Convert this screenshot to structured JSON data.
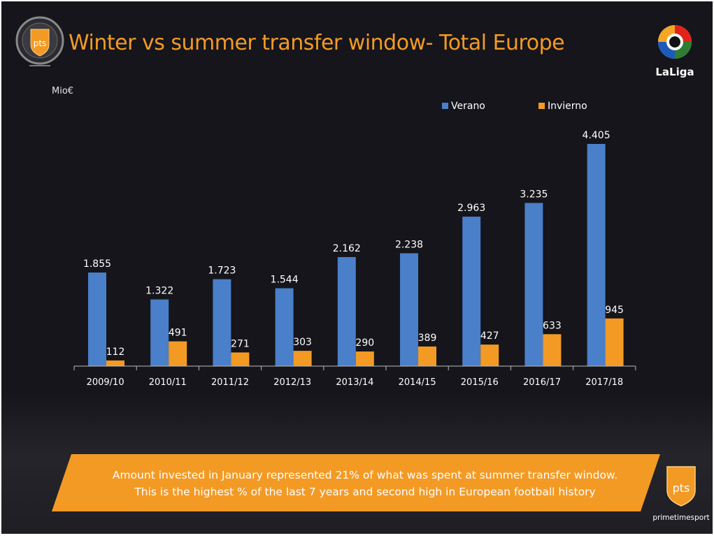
{
  "slide": {
    "title": "Winter vs summer transfer window- Total Europe",
    "unit_label": "Mio€",
    "banner": {
      "line1": "Amount invested in January represented 21% of what was spent at summer transfer window.",
      "line2": "This is the highest % of the last 7 years and second high in European football history"
    },
    "brand_footer": "primetimesport",
    "laliga_logo_text": "LaLiga",
    "pts_badge_text": "pts"
  },
  "colors": {
    "background": "#15151b",
    "title": "#f39a25",
    "verano": "#4a7fc9",
    "invierno": "#f39a25",
    "banner": "#f39a25"
  },
  "chart_data": {
    "type": "bar",
    "title": "Winter vs summer transfer window- Total Europe",
    "ylabel": "Mio€",
    "xlabel": "",
    "categories": [
      "2009/10",
      "2010/11",
      "2011/12",
      "2012/13",
      "2013/14",
      "2014/15",
      "2015/16",
      "2016/17",
      "2017/18"
    ],
    "series": [
      {
        "name": "Verano",
        "values": [
          1855,
          1322,
          1723,
          1544,
          2162,
          2238,
          2963,
          3235,
          4405
        ],
        "labels": [
          "1.855",
          "1.322",
          "1.723",
          "1.544",
          "2.162",
          "2.238",
          "2.963",
          "3.235",
          "4.405"
        ]
      },
      {
        "name": "Invierno",
        "values": [
          112,
          491,
          271,
          303,
          290,
          389,
          427,
          633,
          945
        ],
        "labels": [
          "112",
          "491",
          "271",
          "303",
          "290",
          "389",
          "427",
          "633",
          "945"
        ]
      }
    ],
    "ylim": [
      0,
      4405
    ],
    "grid": false,
    "legend_position": "top-right"
  }
}
